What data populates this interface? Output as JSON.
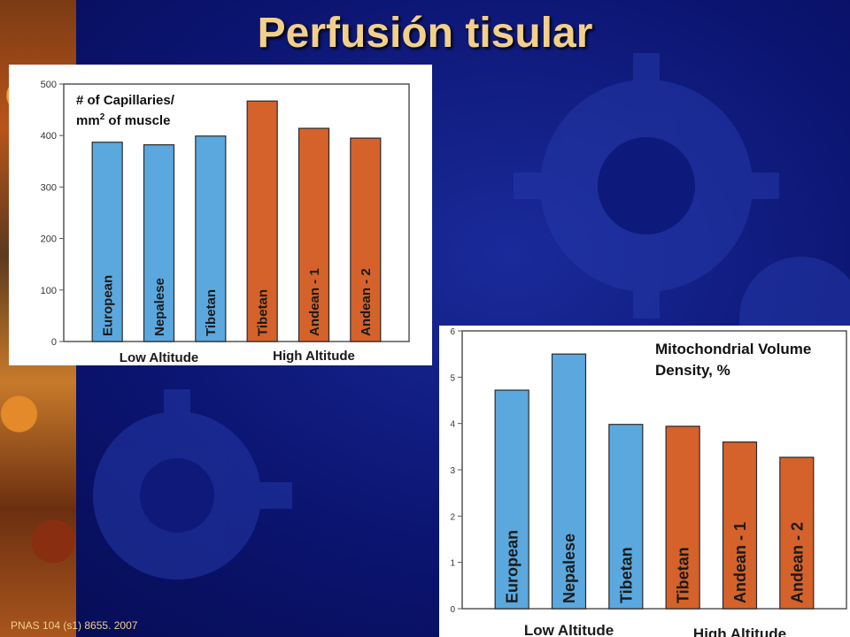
{
  "slide": {
    "title": "Perfusión tisular",
    "citation": "PNAS 104 (s1) 8655. 2007"
  },
  "colors": {
    "low_altitude": "#5aa8de",
    "high_altitude": "#d4622a",
    "title": "#f2d08a"
  },
  "chart_data": [
    {
      "type": "bar",
      "title_line1": "# of Capillaries/",
      "title_line2_pre": "mm",
      "title_line2_sup": "2",
      "title_line2_post": " of muscle",
      "categories": [
        "European",
        "Nepalese",
        "Tibetan",
        "Tibetan",
        "Andean - 1",
        "Andean - 2"
      ],
      "values": [
        387,
        382,
        399,
        467,
        414,
        395
      ],
      "groups": [
        "low",
        "low",
        "low",
        "high",
        "high",
        "high"
      ],
      "group_labels": [
        "Low Altitude",
        "High Altitude"
      ],
      "ylim": [
        0,
        500
      ],
      "yticks": [
        "0",
        "100",
        "200",
        "300",
        "400",
        "500"
      ],
      "grid": false
    },
    {
      "type": "bar",
      "title_line1": "Mitochondrial Volume",
      "title_line2": "Density, %",
      "categories": [
        "European",
        "Nepalese",
        "Tibetan",
        "Tibetan",
        "Andean - 1",
        "Andean - 2"
      ],
      "values": [
        4.72,
        5.5,
        3.98,
        3.94,
        3.6,
        3.27
      ],
      "groups": [
        "low",
        "low",
        "low",
        "high",
        "high",
        "high"
      ],
      "group_labels": [
        "Low Altitude",
        "High Altitude"
      ],
      "ylim": [
        0,
        6
      ],
      "yticks": [
        "0",
        "1",
        "2",
        "3",
        "4",
        "5",
        "6"
      ],
      "grid": false
    }
  ]
}
